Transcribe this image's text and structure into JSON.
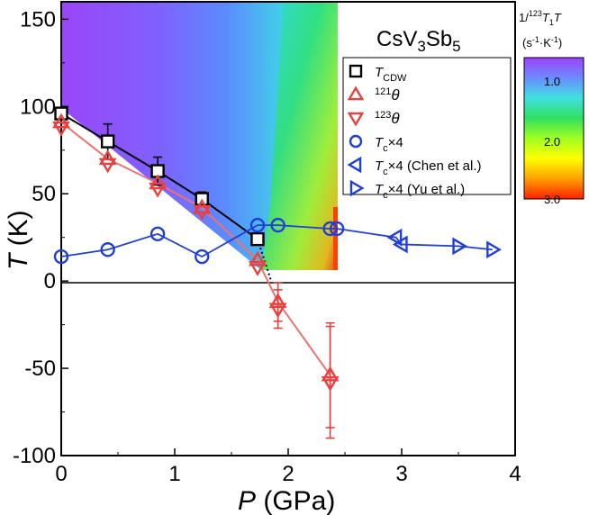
{
  "colors": {
    "cdw": "#000000",
    "theta": "#e8403f",
    "theta_line": "#f07070",
    "tc": "#1f3fd8",
    "phase_line": "#000000"
  },
  "chart_data": {
    "type": "scatter",
    "annotation": {
      "base": "CsV",
      "sub1": "3",
      "mid": "Sb",
      "sub2": "5"
    },
    "xlabel": {
      "italic": "P",
      "rest": " (GPa)"
    },
    "ylabel": {
      "italic": "T",
      "rest": " (K)"
    },
    "xlim": [
      0,
      4
    ],
    "ylim": [
      -100,
      160
    ],
    "xticks": [
      "0",
      "1",
      "2",
      "3",
      "4"
    ],
    "yticks": [
      "-100",
      "-50",
      "0",
      "50",
      "100",
      "150"
    ],
    "legend_position": "top-right",
    "colorbar": {
      "title_line1": {
        "lead": "1/",
        "sup": "123",
        "italic1": "T",
        "sub": "1",
        "italic2": "T"
      },
      "title_line2": {
        "open": "(s",
        "sup1": "-1",
        "mid": "·K",
        "sup2": "-1",
        "close": ")"
      },
      "ticks": [
        "1.0",
        "2.0",
        "3.0"
      ],
      "gradient_stops": [
        "#a040ff",
        "#6a8cff",
        "#40e0e0",
        "#30e060",
        "#a0ff20",
        "#ffff00",
        "#ffa000",
        "#ff2000"
      ]
    },
    "series": [
      {
        "key": "cdw",
        "legend": {
          "italic": "T",
          "sub": "CDW"
        },
        "marker": "square",
        "points": [
          {
            "x": 0.0,
            "y": 96,
            "err": 2
          },
          {
            "x": 0.41,
            "y": 80,
            "err": 10
          },
          {
            "x": 0.85,
            "y": 63,
            "err": 8
          },
          {
            "x": 1.24,
            "y": 47,
            "err": 4
          },
          {
            "x": 1.73,
            "y": 24,
            "err": 3
          }
        ]
      },
      {
        "key": "theta121",
        "legend": {
          "sup": "121",
          "greek": "θ"
        },
        "marker": "triangle-up",
        "points": [
          {
            "x": 0.0,
            "y": 91
          },
          {
            "x": 0.41,
            "y": 70
          },
          {
            "x": 0.85,
            "y": 56
          },
          {
            "x": 1.24,
            "y": 42
          },
          {
            "x": 1.73,
            "y": 12
          },
          {
            "x": 1.91,
            "y": -12,
            "err": 11
          },
          {
            "x": 2.37,
            "y": -54,
            "err": 30
          }
        ]
      },
      {
        "key": "theta123",
        "legend": {
          "sup": "123",
          "greek": "θ"
        },
        "marker": "triangle-down",
        "points": [
          {
            "x": 0.0,
            "y": 88
          },
          {
            "x": 0.41,
            "y": 67
          },
          {
            "x": 0.85,
            "y": 53
          },
          {
            "x": 1.24,
            "y": 40
          },
          {
            "x": 1.73,
            "y": 8
          },
          {
            "x": 1.91,
            "y": -16,
            "err": 11
          },
          {
            "x": 2.37,
            "y": -58,
            "err": 32
          }
        ]
      },
      {
        "key": "tc",
        "legend": {
          "italic": "T",
          "sub": "c",
          "rest": "×4"
        },
        "marker": "circle",
        "connect": true,
        "points": [
          {
            "x": 0.0,
            "y": 14
          },
          {
            "x": 0.41,
            "y": 18
          },
          {
            "x": 0.85,
            "y": 27
          },
          {
            "x": 1.24,
            "y": 14
          },
          {
            "x": 1.73,
            "y": 32
          },
          {
            "x": 1.91,
            "y": 32
          },
          {
            "x": 2.37,
            "y": 30
          },
          {
            "x": 2.43,
            "y": 30
          }
        ]
      },
      {
        "key": "tc_chen",
        "legend": {
          "italic": "T",
          "sub": "c",
          "rest": "×4 (Chen et al.)"
        },
        "marker": "triangle-left",
        "points": [
          {
            "x": 2.95,
            "y": 25
          },
          {
            "x": 3.0,
            "y": 21
          }
        ]
      },
      {
        "key": "tc_yu",
        "legend": {
          "italic": "T",
          "sub": "c",
          "rest": "×4 (Yu et al.)"
        },
        "marker": "triangle-right",
        "points": [
          {
            "x": 3.5,
            "y": 20
          },
          {
            "x": 3.8,
            "y": 18
          }
        ]
      }
    ]
  }
}
